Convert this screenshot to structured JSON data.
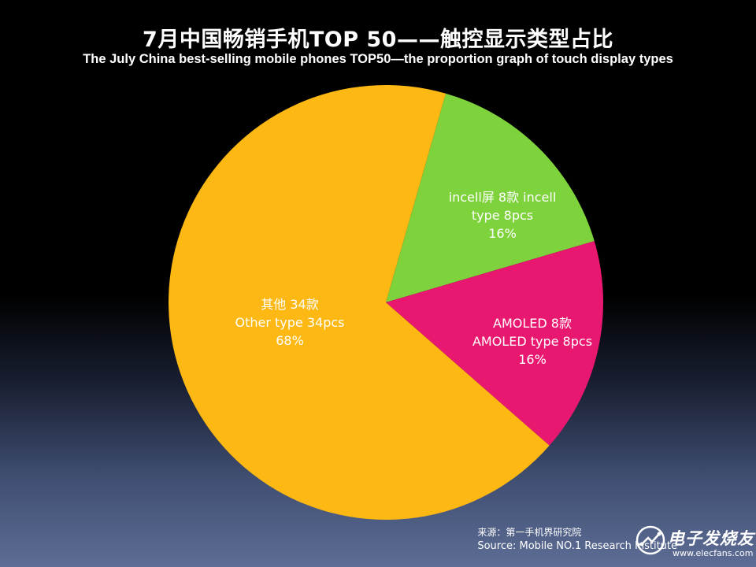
{
  "title_zh": "7月中国畅销手机TOP 50——触控显示类型占比",
  "title_en": "The July China best-selling mobile phones TOP50—the proportion graph of touch display types",
  "chart_data": {
    "type": "pie",
    "title": "7月中国畅销手机TOP 50——触控显示类型占比",
    "subtitle": "The July China best-selling mobile phones TOP50—the proportion graph of touch display types",
    "start": "top, clockwise",
    "slices": [
      {
        "label_lines": [
          "incell屏 8款 incell",
          "type 8pcs",
          "16%"
        ],
        "value": 8,
        "percent": 16,
        "color": "#7ed23c"
      },
      {
        "label_lines": [
          "AMOLED 8款",
          "AMOLED type 8pcs",
          "16%"
        ],
        "value": 8,
        "percent": 16,
        "color": "#e8176f"
      },
      {
        "label_lines": [
          "其他 34款",
          "Other type 34pcs",
          "68%"
        ],
        "value": 34,
        "percent": 68,
        "color": "#fdb813"
      }
    ]
  },
  "source": {
    "zh": "来源：第一手机界研究院",
    "en": "Source: Mobile NO.1 Research Institute"
  },
  "watermark": {
    "name": "电子发烧友",
    "url": "www.elecfans.com"
  }
}
